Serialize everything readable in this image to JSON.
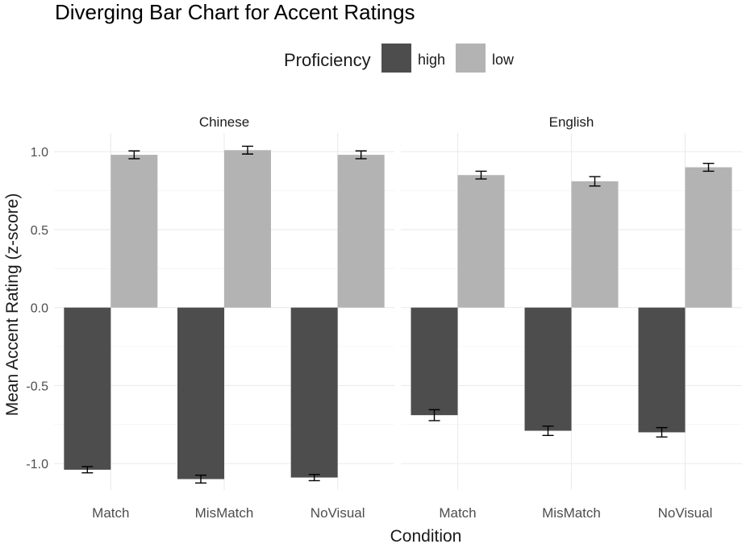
{
  "chart_data": {
    "type": "bar",
    "title": "Diverging Bar Chart for Accent Ratings",
    "xlabel": "Condition",
    "ylabel": "Mean Accent Rating (z-score)",
    "ylim": [
      -1.17,
      1.12
    ],
    "yticks": [
      -1.0,
      -0.5,
      0.0,
      0.5,
      1.0
    ],
    "ytick_labels": [
      "-1.0",
      "-0.5",
      "0.0",
      "0.5",
      "1.0"
    ],
    "legend": {
      "title": "Proficiency",
      "position": "top",
      "entries": [
        {
          "label": "high",
          "color": "#4d4d4d"
        },
        {
          "label": "low",
          "color": "#b3b3b3"
        }
      ]
    },
    "categories": [
      "Match",
      "MisMatch",
      "NoVisual"
    ],
    "facets": [
      {
        "name": "Chinese",
        "series": [
          {
            "name": "high",
            "values": [
              -1.04,
              -1.1,
              -1.09
            ],
            "errors": [
              0.02,
              0.025,
              0.02
            ]
          },
          {
            "name": "low",
            "values": [
              0.98,
              1.01,
              0.98
            ],
            "errors": [
              0.025,
              0.025,
              0.025
            ]
          }
        ]
      },
      {
        "name": "English",
        "series": [
          {
            "name": "high",
            "values": [
              -0.69,
              -0.79,
              -0.8
            ],
            "errors": [
              0.035,
              0.03,
              0.03
            ]
          },
          {
            "name": "low",
            "values": [
              0.85,
              0.81,
              0.9
            ],
            "errors": [
              0.025,
              0.03,
              0.025
            ]
          }
        ]
      }
    ],
    "grid": true
  }
}
